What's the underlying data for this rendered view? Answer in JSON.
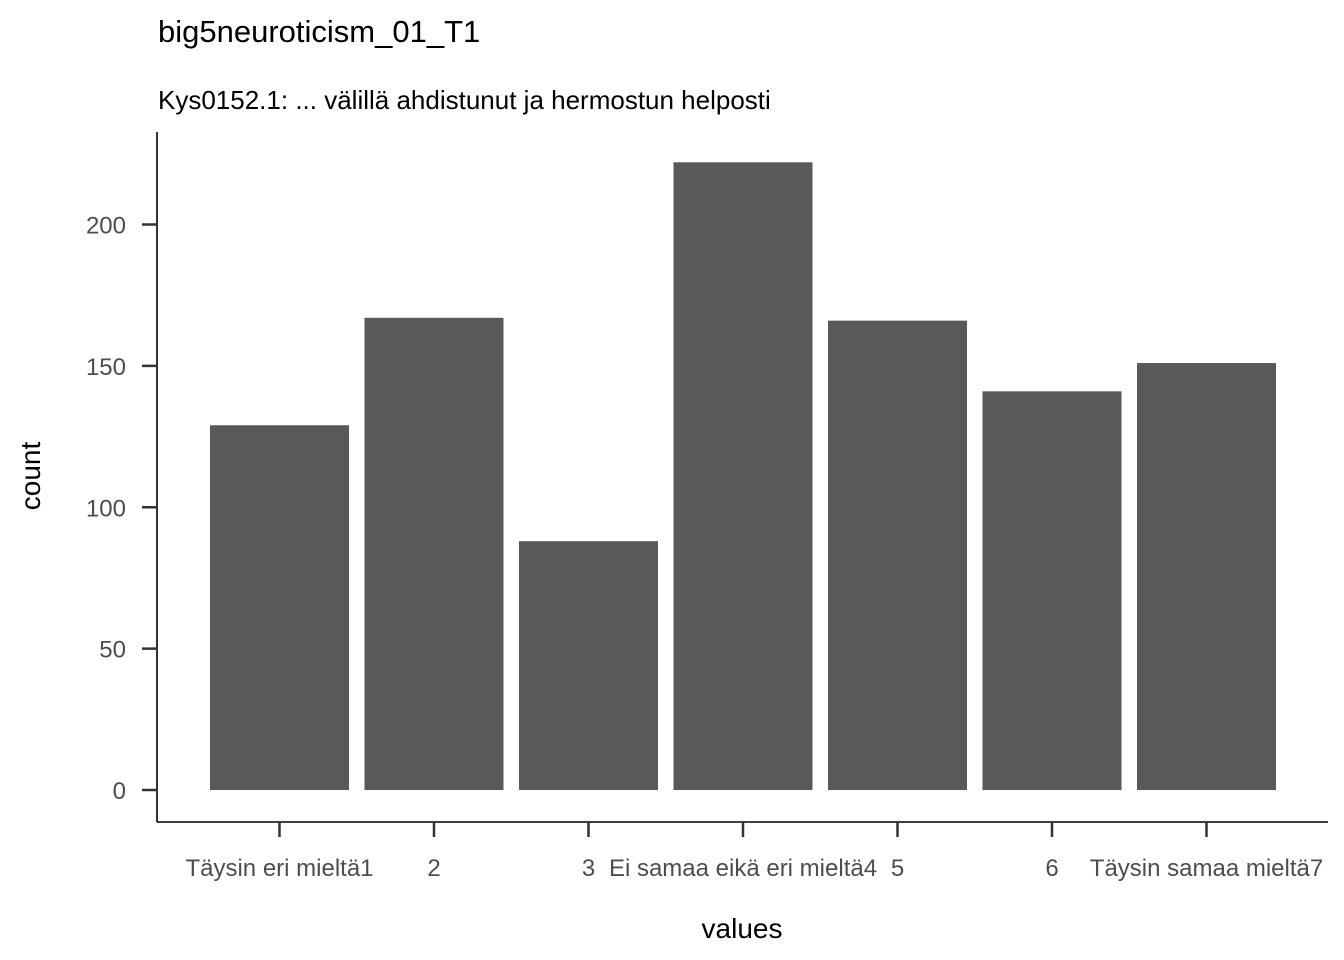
{
  "chart_data": {
    "type": "bar",
    "title": "big5neuroticism_01_T1",
    "subtitle": "Kys0152.1: ... välillä ahdistunut ja hermostun helposti",
    "xlabel": "values",
    "ylabel": "count",
    "categories": [
      "Täysin eri mieltä1",
      "2",
      "3",
      "Ei samaa eikä eri mieltä4",
      "5",
      "6",
      "Täysin samaa mieltä7"
    ],
    "values": [
      129,
      167,
      88,
      222,
      166,
      141,
      151
    ],
    "ylim": [
      0,
      232
    ],
    "yticks": [
      0,
      50,
      100,
      150,
      200
    ],
    "bar_color": "#595959",
    "grid": false
  }
}
